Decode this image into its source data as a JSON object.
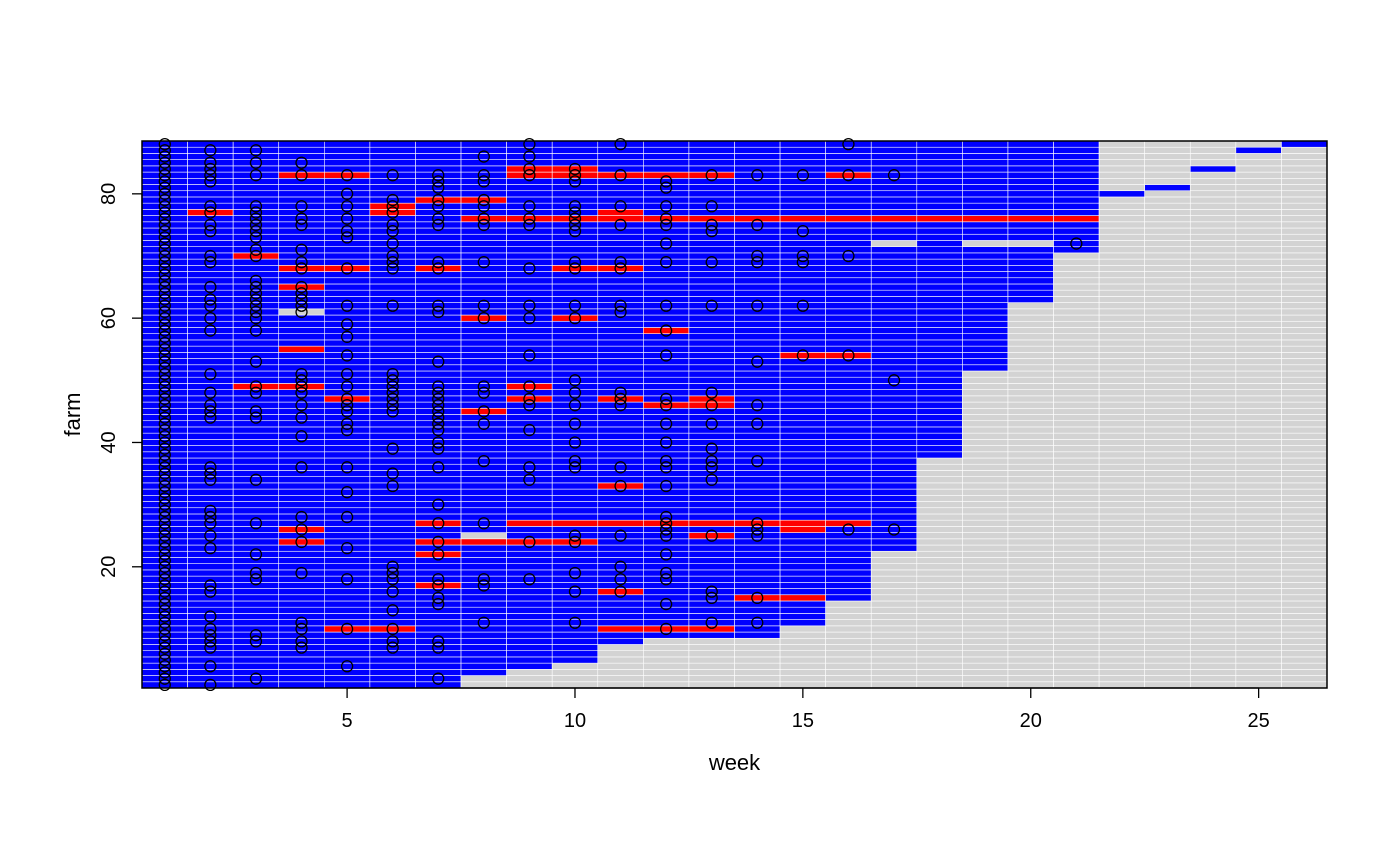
{
  "chart_data": {
    "type": "heatmap",
    "title": "",
    "xlabel": "week",
    "ylabel": "farm",
    "xlim": [
      0.5,
      26.5
    ],
    "ylim": [
      0.5,
      88.5
    ],
    "x_ticks": [
      5,
      10,
      15,
      20,
      25
    ],
    "y_ticks": [
      20,
      40,
      60,
      80
    ],
    "colors": {
      "not_infected": "#0000FF",
      "infected": "#FF0000",
      "missing": "#D3D3D3",
      "cell_border": "#FFFFFF",
      "point": "#000000"
    },
    "grid": false,
    "legend": "none",
    "rows_observed_per_week": [
      {
        "week": 1,
        "max_farm": 88
      },
      {
        "week": 2,
        "max_farm": 88
      },
      {
        "week": 3,
        "max_farm": 88
      },
      {
        "week": 4,
        "max_farm": 88
      },
      {
        "week": 5,
        "max_farm": 88
      },
      {
        "week": 6,
        "max_farm": 88
      },
      {
        "week": 7,
        "max_farm": 88
      },
      {
        "week": 8,
        "max_farm": 88
      },
      {
        "week": 9,
        "max_farm": 88
      },
      {
        "week": 10,
        "max_farm": 88
      },
      {
        "week": 11,
        "max_farm": 88
      },
      {
        "week": 12,
        "max_farm": 88
      },
      {
        "week": 13,
        "max_farm": 88
      },
      {
        "week": 14,
        "max_farm": 88
      },
      {
        "week": 15,
        "max_farm": 88
      },
      {
        "week": 16,
        "max_farm": 88
      },
      {
        "week": 17,
        "max_farm": 88
      },
      {
        "week": 18,
        "max_farm": 88
      },
      {
        "week": 19,
        "max_farm": 88
      },
      {
        "week": 20,
        "max_farm": 88
      },
      {
        "week": 21,
        "max_farm": 88
      },
      {
        "week": 22,
        "max_farm": 80
      },
      {
        "week": 23,
        "max_farm": 81
      },
      {
        "week": 24,
        "max_farm": 84
      },
      {
        "week": 25,
        "max_farm": 87
      },
      {
        "week": 26,
        "max_farm": 88
      }
    ],
    "first_observed_farm_per_week": [
      1,
      1,
      1,
      1,
      1,
      1,
      1,
      3,
      4,
      5,
      8,
      9,
      9,
      9,
      11,
      15,
      23,
      38,
      52,
      63,
      71,
      80,
      81,
      84,
      87,
      88
    ],
    "missing_cells": [
      {
        "week": 4,
        "farm": 61
      },
      {
        "week": 8,
        "farm": 25
      },
      {
        "week": 17,
        "farm": 72
      },
      {
        "week": 19,
        "farm": 72
      },
      {
        "week": 20,
        "farm": 72
      }
    ],
    "infected_cells": [
      {
        "week": 2,
        "farms": [
          77
        ]
      },
      {
        "week": 3,
        "farms": [
          49,
          70
        ]
      },
      {
        "week": 4,
        "farms": [
          24,
          26,
          49,
          55,
          65,
          68,
          83
        ]
      },
      {
        "week": 5,
        "farms": [
          10,
          47,
          68,
          83
        ]
      },
      {
        "week": 6,
        "farms": [
          10,
          77,
          78
        ]
      },
      {
        "week": 7,
        "farms": [
          17,
          22,
          24,
          27,
          68,
          79
        ]
      },
      {
        "week": 8,
        "farms": [
          24,
          45,
          60,
          76,
          79
        ]
      },
      {
        "week": 9,
        "farms": [
          24,
          27,
          47,
          49,
          76,
          83,
          84
        ]
      },
      {
        "week": 10,
        "farms": [
          24,
          27,
          60,
          68,
          76,
          83,
          84
        ]
      },
      {
        "week": 11,
        "farms": [
          10,
          16,
          27,
          33,
          47,
          68,
          76,
          77,
          83
        ]
      },
      {
        "week": 12,
        "farms": [
          10,
          27,
          46,
          58,
          76,
          83
        ]
      },
      {
        "week": 13,
        "farms": [
          10,
          25,
          27,
          46,
          47,
          76,
          83
        ]
      },
      {
        "week": 14,
        "farms": [
          15,
          27,
          76
        ]
      },
      {
        "week": 15,
        "farms": [
          15,
          26,
          27,
          54,
          76
        ]
      },
      {
        "week": 16,
        "farms": [
          27,
          54,
          76,
          83
        ]
      },
      {
        "week": 17,
        "farms": [
          76
        ]
      },
      {
        "week": 18,
        "farms": [
          76
        ]
      },
      {
        "week": 19,
        "farms": [
          76
        ]
      },
      {
        "week": 20,
        "farms": [
          76
        ]
      },
      {
        "week": 21,
        "farms": [
          76
        ]
      }
    ],
    "points": [
      {
        "week": 1,
        "farms": [
          1,
          2,
          3,
          4,
          5,
          6,
          7,
          8,
          9,
          10,
          11,
          12,
          13,
          14,
          15,
          16,
          17,
          18,
          19,
          20,
          21,
          22,
          23,
          24,
          25,
          26,
          27,
          28,
          29,
          30,
          31,
          32,
          33,
          34,
          35,
          36,
          37,
          38,
          39,
          40,
          41,
          42,
          43,
          44,
          45,
          46,
          47,
          48,
          49,
          50,
          51,
          52,
          53,
          54,
          55,
          56,
          57,
          58,
          59,
          60,
          61,
          62,
          63,
          64,
          65,
          66,
          67,
          68,
          69,
          70,
          71,
          72,
          73,
          74,
          75,
          76,
          77,
          78,
          79,
          80,
          81,
          82,
          83,
          84,
          85,
          86,
          87,
          88
        ]
      },
      {
        "week": 2,
        "farms": [
          1,
          4,
          7,
          8,
          9,
          10,
          12,
          16,
          17,
          23,
          25,
          27,
          28,
          29,
          34,
          35,
          36,
          44,
          45,
          46,
          48,
          51,
          58,
          60,
          62,
          63,
          65,
          69,
          70,
          74,
          75,
          77,
          78,
          82,
          83,
          84,
          85,
          87
        ]
      },
      {
        "week": 3,
        "farms": [
          2,
          8,
          9,
          18,
          19,
          22,
          27,
          34,
          44,
          45,
          48,
          49,
          53,
          58,
          60,
          61,
          62,
          63,
          64,
          65,
          66,
          70,
          71,
          73,
          74,
          75,
          76,
          77,
          78,
          83,
          85,
          87
        ]
      },
      {
        "week": 4,
        "farms": [
          7,
          8,
          10,
          11,
          19,
          24,
          26,
          28,
          36,
          41,
          44,
          46,
          48,
          49,
          50,
          51,
          61,
          62,
          63,
          64,
          65,
          68,
          69,
          71,
          75,
          76,
          78,
          83,
          85
        ]
      },
      {
        "week": 5,
        "farms": [
          4,
          10,
          18,
          23,
          28,
          32,
          36,
          42,
          43,
          45,
          46,
          47,
          49,
          51,
          54,
          57,
          59,
          62,
          68,
          73,
          74,
          76,
          78,
          80,
          83
        ]
      },
      {
        "week": 6,
        "farms": [
          7,
          8,
          10,
          13,
          16,
          18,
          19,
          20,
          33,
          35,
          39,
          45,
          46,
          47,
          48,
          49,
          50,
          51,
          62,
          68,
          69,
          70,
          72,
          74,
          75,
          77,
          78,
          79,
          83
        ]
      },
      {
        "week": 7,
        "farms": [
          2,
          7,
          8,
          14,
          15,
          17,
          18,
          22,
          24,
          27,
          30,
          36,
          39,
          40,
          42,
          43,
          44,
          45,
          46,
          47,
          48,
          49,
          53,
          61,
          62,
          68,
          69,
          75,
          76,
          78,
          79,
          81,
          82,
          83
        ]
      },
      {
        "week": 8,
        "farms": [
          11,
          17,
          18,
          27,
          37,
          43,
          45,
          48,
          49,
          60,
          62,
          69,
          75,
          76,
          78,
          79,
          82,
          83,
          86
        ]
      },
      {
        "week": 9,
        "farms": [
          18,
          24,
          34,
          36,
          42,
          46,
          47,
          49,
          54,
          60,
          62,
          68,
          75,
          76,
          78,
          83,
          84,
          86,
          88
        ]
      },
      {
        "week": 10,
        "farms": [
          11,
          16,
          19,
          24,
          25,
          36,
          37,
          40,
          43,
          46,
          48,
          50,
          60,
          62,
          68,
          69,
          74,
          75,
          76,
          77,
          78,
          82,
          83,
          84
        ]
      },
      {
        "week": 11,
        "farms": [
          16,
          18,
          20,
          25,
          33,
          36,
          46,
          47,
          48,
          61,
          62,
          68,
          69,
          75,
          78,
          83,
          88
        ]
      },
      {
        "week": 12,
        "farms": [
          10,
          14,
          18,
          19,
          22,
          25,
          26,
          27,
          28,
          33,
          36,
          37,
          40,
          43,
          46,
          47,
          54,
          58,
          62,
          69,
          72,
          75,
          76,
          78,
          81,
          82
        ]
      },
      {
        "week": 13,
        "farms": [
          11,
          15,
          16,
          25,
          34,
          36,
          37,
          39,
          43,
          46,
          48,
          62,
          69,
          74,
          75,
          78,
          83
        ]
      },
      {
        "week": 14,
        "farms": [
          11,
          15,
          25,
          26,
          27,
          37,
          43,
          46,
          53,
          62,
          69,
          70,
          75,
          83
        ]
      },
      {
        "week": 15,
        "farms": [
          54,
          62,
          69,
          70,
          74,
          83
        ]
      },
      {
        "week": 16,
        "farms": [
          26,
          54,
          70,
          83,
          88
        ]
      },
      {
        "week": 17,
        "farms": [
          26,
          50,
          83
        ]
      },
      {
        "week": 21,
        "farms": [
          72
        ]
      }
    ]
  }
}
